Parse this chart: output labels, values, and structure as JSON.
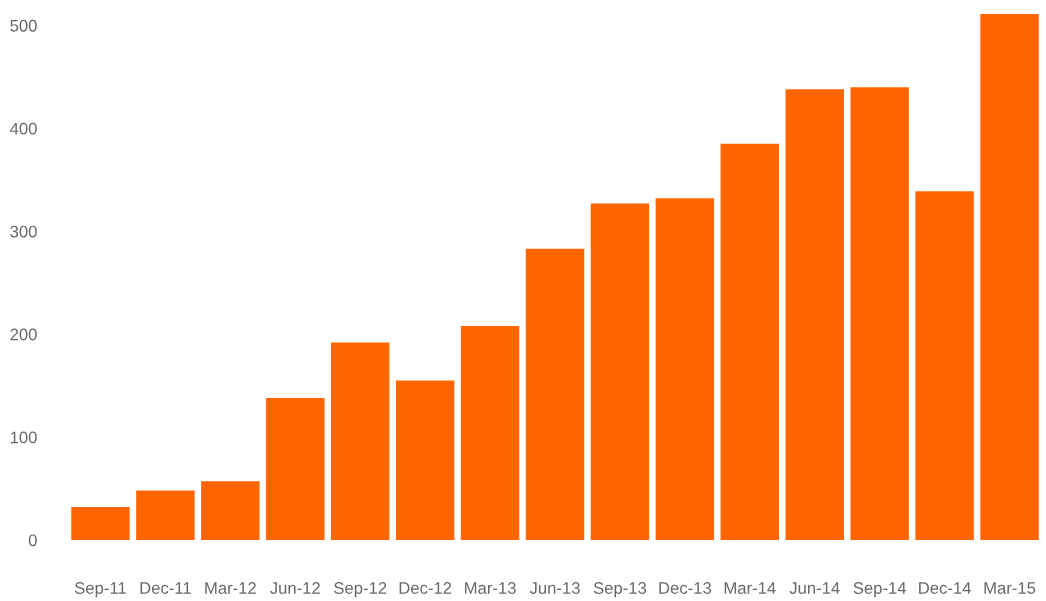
{
  "chart_data": {
    "type": "bar",
    "categories": [
      "Sep-11",
      "Dec-11",
      "Mar-12",
      "Jun-12",
      "Sep-12",
      "Dec-12",
      "Mar-13",
      "Jun-13",
      "Sep-13",
      "Dec-13",
      "Mar-14",
      "Jun-14",
      "Sep-14",
      "Dec-14",
      "Mar-15"
    ],
    "values": [
      32,
      48,
      57,
      138,
      192,
      155,
      208,
      283,
      327,
      332,
      385,
      438,
      440,
      339,
      511
    ],
    "color": "#ff6600",
    "ylim": [
      0,
      515
    ],
    "yticks": [
      0,
      100,
      200,
      300,
      400,
      500
    ],
    "grid": false
  }
}
